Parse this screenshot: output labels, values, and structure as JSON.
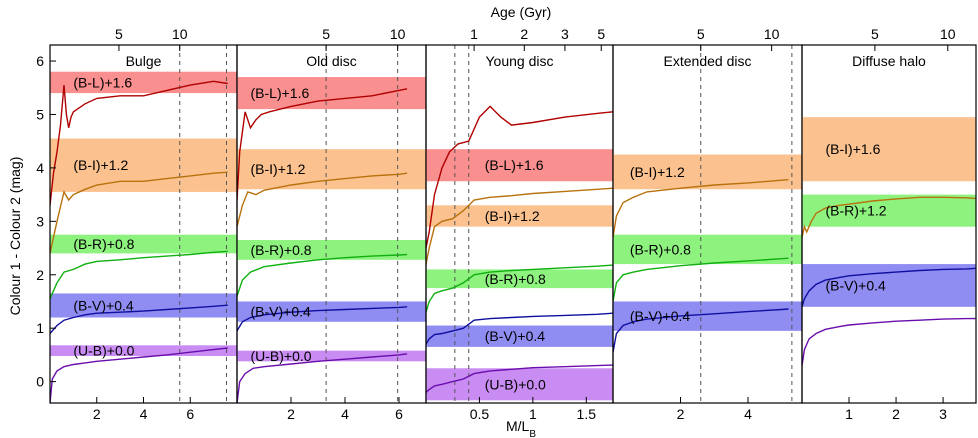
{
  "chart_data": {
    "type": "line",
    "ylabel": "Colour 1 - Colour 2  (mag)",
    "xlabel_bottom": "M/L",
    "xlabel_bottom_sub": "B",
    "xlabel_top": "Age (Gyr)",
    "ylim": [
      -0.4,
      6.3
    ],
    "yticks": [
      0,
      1,
      2,
      3,
      4,
      5,
      6
    ],
    "colors": {
      "U-B": "#6a0dad",
      "B-V": "#1010a0",
      "B-R": "#10b010",
      "B-I": "#b8720d",
      "B-L": "#b00000"
    },
    "band_colors": {
      "U-B": "#c98cf2",
      "B-V": "#8f8cf2",
      "B-R": "#8ef27f",
      "B-I": "#fbc28f",
      "B-L": "#fa8f8f"
    },
    "panels": [
      {
        "title": "Bulge",
        "xlim": [
          0,
          8
        ],
        "xticks": [
          2,
          4,
          6
        ],
        "top_ticks": [
          {
            "label": "5",
            "x": 2.95
          },
          {
            "label": "10",
            "x": 5.55
          }
        ],
        "age_lines": [
          5.55,
          7.55
        ],
        "bands": [
          {
            "key": "B-L",
            "label": "(B-L)+1.6",
            "y0": 5.4,
            "y1": 5.8,
            "label_x": 1.0
          },
          {
            "key": "B-I",
            "label": "(B-I)+1.2",
            "y0": 3.55,
            "y1": 4.55,
            "label_x": 1.0
          },
          {
            "key": "B-R",
            "label": "(B-R)+0.8",
            "y0": 2.4,
            "y1": 2.75,
            "label_x": 1.0
          },
          {
            "key": "B-V",
            "label": "(B-V)+0.4",
            "y0": 1.2,
            "y1": 1.65,
            "label_x": 1.0
          },
          {
            "key": "U-B",
            "label": "(U-B)+0.0",
            "y0": 0.48,
            "y1": 0.68,
            "label_x": 1.0
          }
        ],
        "curves": [
          {
            "key": "B-L",
            "x": [
              0.0,
              0.15,
              0.3,
              0.45,
              0.6,
              0.7,
              0.8,
              0.9,
              1.0,
              1.5,
              2.0,
              3.0,
              4.0,
              5.0,
              6.0,
              7.0,
              7.6
            ],
            "y": [
              3.3,
              3.9,
              4.3,
              4.8,
              5.55,
              5.0,
              4.75,
              4.95,
              5.05,
              5.2,
              5.3,
              5.35,
              5.35,
              5.45,
              5.55,
              5.62,
              5.58
            ]
          },
          {
            "key": "B-I",
            "x": [
              0.0,
              0.3,
              0.6,
              0.8,
              1.0,
              1.5,
              2.0,
              3.0,
              4.0,
              5.0,
              6.0,
              7.0,
              7.6
            ],
            "y": [
              2.4,
              3.0,
              3.55,
              3.4,
              3.5,
              3.6,
              3.68,
              3.75,
              3.75,
              3.8,
              3.85,
              3.9,
              3.92
            ]
          },
          {
            "key": "B-R",
            "x": [
              0.0,
              0.3,
              0.6,
              1.0,
              1.5,
              2.0,
              3.0,
              4.0,
              5.0,
              6.0,
              7.0,
              7.6
            ],
            "y": [
              1.55,
              1.85,
              2.05,
              2.1,
              2.2,
              2.25,
              2.28,
              2.32,
              2.35,
              2.38,
              2.42,
              2.44
            ]
          },
          {
            "key": "B-V",
            "x": [
              0.0,
              0.3,
              0.6,
              1.0,
              1.5,
              2.0,
              3.0,
              4.0,
              5.0,
              6.0,
              7.0,
              7.6
            ],
            "y": [
              0.9,
              1.05,
              1.15,
              1.2,
              1.25,
              1.28,
              1.3,
              1.32,
              1.35,
              1.38,
              1.41,
              1.43
            ]
          },
          {
            "key": "U-B",
            "x": [
              0.0,
              0.1,
              0.3,
              0.6,
              1.0,
              1.5,
              2.0,
              3.0,
              4.0,
              5.0,
              6.0,
              7.0,
              7.6
            ],
            "y": [
              -0.4,
              0.05,
              0.2,
              0.28,
              0.32,
              0.35,
              0.38,
              0.42,
              0.46,
              0.5,
              0.55,
              0.6,
              0.63
            ]
          }
        ]
      },
      {
        "title": "Old disc",
        "xlim": [
          0,
          7
        ],
        "xticks": [
          2,
          4,
          6
        ],
        "top_ticks": [
          {
            "label": "5",
            "x": 3.3
          },
          {
            "label": "10",
            "x": 5.95
          }
        ],
        "age_lines": [
          3.3,
          5.95
        ],
        "bands": [
          {
            "key": "B-L",
            "label": "(B-L)+1.6",
            "y0": 5.1,
            "y1": 5.7,
            "label_x": 0.5
          },
          {
            "key": "B-I",
            "label": "(B-I)+1.2",
            "y0": 3.6,
            "y1": 4.35,
            "label_x": 0.5
          },
          {
            "key": "B-R",
            "label": "(B-R)+0.8",
            "y0": 2.28,
            "y1": 2.65,
            "label_x": 0.5
          },
          {
            "key": "B-V",
            "label": "(B-V)+0.4",
            "y0": 1.12,
            "y1": 1.5,
            "label_x": 0.5
          },
          {
            "key": "U-B",
            "label": "(U-B)+0.0",
            "y0": 0.38,
            "y1": 0.58,
            "label_x": 0.5
          }
        ],
        "curves": [
          {
            "key": "B-L",
            "x": [
              0.0,
              0.1,
              0.3,
              0.5,
              0.7,
              0.9,
              1.2,
              2.0,
              3.0,
              4.0,
              5.0,
              6.0,
              6.3
            ],
            "y": [
              3.4,
              4.3,
              5.05,
              4.75,
              4.9,
              5.0,
              5.05,
              5.15,
              5.25,
              5.3,
              5.35,
              5.45,
              5.48
            ]
          },
          {
            "key": "B-I",
            "x": [
              0.0,
              0.2,
              0.4,
              0.7,
              1.0,
              2.0,
              3.0,
              4.0,
              5.0,
              6.0,
              6.3
            ],
            "y": [
              2.9,
              3.3,
              3.55,
              3.5,
              3.58,
              3.68,
              3.75,
              3.8,
              3.85,
              3.88,
              3.9
            ]
          },
          {
            "key": "B-R",
            "x": [
              0.0,
              0.2,
              0.5,
              1.0,
              2.0,
              3.0,
              4.0,
              5.0,
              6.0,
              6.3
            ],
            "y": [
              1.6,
              1.9,
              2.05,
              2.15,
              2.22,
              2.28,
              2.32,
              2.35,
              2.37,
              2.38
            ]
          },
          {
            "key": "B-V",
            "x": [
              0.0,
              0.2,
              0.5,
              1.0,
              2.0,
              3.0,
              4.0,
              5.0,
              6.0,
              6.3
            ],
            "y": [
              0.95,
              1.12,
              1.2,
              1.25,
              1.3,
              1.33,
              1.35,
              1.37,
              1.39,
              1.4
            ]
          },
          {
            "key": "U-B",
            "x": [
              0.0,
              0.1,
              0.3,
              0.6,
              1.0,
              2.0,
              3.0,
              4.0,
              5.0,
              6.0,
              6.3
            ],
            "y": [
              -0.4,
              0.0,
              0.15,
              0.25,
              0.28,
              0.33,
              0.38,
              0.42,
              0.46,
              0.5,
              0.52
            ]
          }
        ]
      },
      {
        "title": "Young disc",
        "xlim": [
          0,
          1.75
        ],
        "xticks": [
          0.5,
          1,
          1.5
        ],
        "top_ticks": [
          {
            "label": "1",
            "x": 0.45
          },
          {
            "label": "2",
            "x": 0.92
          },
          {
            "label": "3",
            "x": 1.3
          },
          {
            "label": "5",
            "x": 1.64
          }
        ],
        "age_lines": [
          0.27,
          0.4
        ],
        "bands": [
          {
            "key": "B-L",
            "label": "(B-L)+1.6",
            "y0": 3.75,
            "y1": 4.35,
            "label_x": 0.55
          },
          {
            "key": "B-I",
            "label": "(B-I)+1.2",
            "y0": 2.9,
            "y1": 3.3,
            "label_x": 0.55
          },
          {
            "key": "B-R",
            "label": "(B-R)+0.8",
            "y0": 1.75,
            "y1": 2.1,
            "label_x": 0.55
          },
          {
            "key": "B-V",
            "label": "(B-V)+0.4",
            "y0": 0.65,
            "y1": 1.05,
            "label_x": 0.55
          },
          {
            "key": "U-B",
            "label": "(U-B)+0.0",
            "y0": -0.35,
            "y1": 0.25,
            "label_x": 0.55
          }
        ],
        "curves": [
          {
            "key": "B-L",
            "x": [
              0.0,
              0.03,
              0.08,
              0.15,
              0.22,
              0.3,
              0.4,
              0.5,
              0.6,
              0.7,
              0.8,
              1.0,
              1.3,
              1.6,
              1.75
            ],
            "y": [
              2.5,
              2.8,
              3.5,
              4.0,
              4.3,
              4.45,
              4.5,
              4.95,
              5.15,
              4.95,
              4.8,
              4.85,
              4.95,
              5.02,
              5.05
            ]
          },
          {
            "key": "B-I",
            "x": [
              0.0,
              0.03,
              0.08,
              0.15,
              0.25,
              0.35,
              0.45,
              0.6,
              0.8,
              1.0,
              1.3,
              1.6,
              1.75
            ],
            "y": [
              2.2,
              2.5,
              2.9,
              3.0,
              3.05,
              3.2,
              3.4,
              3.45,
              3.48,
              3.52,
              3.56,
              3.6,
              3.62
            ]
          },
          {
            "key": "B-R",
            "x": [
              0.0,
              0.03,
              0.08,
              0.15,
              0.25,
              0.35,
              0.45,
              0.6,
              0.8,
              1.0,
              1.3,
              1.6,
              1.75
            ],
            "y": [
              1.3,
              1.5,
              1.65,
              1.7,
              1.75,
              1.85,
              2.0,
              2.05,
              2.08,
              2.1,
              2.13,
              2.16,
              2.18
            ]
          },
          {
            "key": "B-V",
            "x": [
              0.0,
              0.03,
              0.08,
              0.15,
              0.25,
              0.35,
              0.45,
              0.6,
              0.8,
              1.0,
              1.3,
              1.6,
              1.75
            ],
            "y": [
              0.7,
              0.8,
              0.88,
              0.9,
              0.95,
              1.0,
              1.15,
              1.18,
              1.2,
              1.22,
              1.24,
              1.26,
              1.28
            ]
          },
          {
            "key": "U-B",
            "x": [
              0.0,
              0.03,
              0.08,
              0.15,
              0.25,
              0.35,
              0.45,
              0.6,
              0.8,
              1.0,
              1.3,
              1.6,
              1.75
            ],
            "y": [
              -0.2,
              -0.15,
              -0.08,
              -0.05,
              0.0,
              0.05,
              0.15,
              0.2,
              0.23,
              0.26,
              0.28,
              0.3,
              0.31
            ]
          }
        ]
      },
      {
        "title": "Extended disc",
        "xlim": [
          0,
          5.6
        ],
        "xticks": [
          2,
          4
        ],
        "top_ticks": [
          {
            "label": "5",
            "x": 2.6
          },
          {
            "label": "10",
            "x": 4.7
          }
        ],
        "age_lines": [
          2.6,
          5.3
        ],
        "bands": [
          {
            "key": "B-I",
            "label": "(B-I)+1.2",
            "y0": 3.6,
            "y1": 4.25,
            "label_x": 0.5
          },
          {
            "key": "B-R",
            "label": "(B-R)+0.8",
            "y0": 2.2,
            "y1": 2.75,
            "label_x": 0.5
          },
          {
            "key": "B-V",
            "label": "(B-V)+0.4",
            "y0": 0.95,
            "y1": 1.5,
            "label_x": 0.5
          }
        ],
        "curves": [
          {
            "key": "B-I",
            "x": [
              0.0,
              0.1,
              0.3,
              0.6,
              1.0,
              2.0,
              3.0,
              4.0,
              5.0,
              5.2
            ],
            "y": [
              2.7,
              3.1,
              3.35,
              3.45,
              3.55,
              3.62,
              3.68,
              3.72,
              3.77,
              3.78
            ]
          },
          {
            "key": "B-R",
            "x": [
              0.0,
              0.1,
              0.3,
              0.6,
              1.0,
              2.0,
              3.0,
              4.0,
              5.0,
              5.2
            ],
            "y": [
              1.5,
              1.85,
              2.0,
              2.05,
              2.1,
              2.17,
              2.22,
              2.26,
              2.3,
              2.31
            ]
          },
          {
            "key": "B-V",
            "x": [
              0.0,
              0.1,
              0.3,
              0.6,
              1.0,
              2.0,
              3.0,
              4.0,
              5.0,
              5.2
            ],
            "y": [
              0.55,
              0.9,
              1.05,
              1.12,
              1.17,
              1.23,
              1.27,
              1.31,
              1.35,
              1.36
            ]
          }
        ]
      },
      {
        "title": "Diffuse halo",
        "xlim": [
          0,
          3.7
        ],
        "xticks": [
          1,
          2,
          3
        ],
        "top_ticks": [
          {
            "label": "5",
            "x": 1.55
          },
          {
            "label": "10",
            "x": 3.1
          }
        ],
        "age_lines": [],
        "bands": [
          {
            "key": "B-I",
            "label": "(B-I)+1.6",
            "y0": 3.75,
            "y1": 4.95,
            "label_x": 0.5
          },
          {
            "key": "B-R",
            "label": "(B-R)+1.2",
            "y0": 2.9,
            "y1": 3.5,
            "label_x": 0.5
          },
          {
            "key": "B-V",
            "label": "(B-V)+0.4",
            "y0": 1.4,
            "y1": 2.2,
            "label_x": 0.5
          }
        ],
        "curves": [
          {
            "key": "B-I",
            "x": [
              0.0,
              0.05,
              0.1,
              0.2,
              0.3,
              0.5,
              0.8,
              1.0,
              1.5,
              2.0,
              2.5,
              3.0,
              3.5,
              3.7
            ],
            "y": [
              2.7,
              2.9,
              2.8,
              3.0,
              3.15,
              3.25,
              3.3,
              3.32,
              3.38,
              3.42,
              3.45,
              3.45,
              3.44,
              3.43
            ]
          },
          {
            "key": "B-V",
            "x": [
              0.0,
              0.05,
              0.15,
              0.3,
              0.5,
              0.8,
              1.0,
              1.5,
              2.0,
              2.5,
              3.0,
              3.5,
              3.7
            ],
            "y": [
              1.4,
              1.55,
              1.7,
              1.82,
              1.9,
              1.95,
              1.98,
              2.02,
              2.05,
              2.08,
              2.1,
              2.11,
              2.12
            ]
          },
          {
            "key": "U-B",
            "x": [
              0.0,
              0.05,
              0.15,
              0.3,
              0.5,
              0.8,
              1.0,
              1.5,
              2.0,
              2.5,
              3.0,
              3.5,
              3.7
            ],
            "y": [
              0.3,
              0.6,
              0.8,
              0.9,
              0.98,
              1.03,
              1.06,
              1.1,
              1.13,
              1.15,
              1.17,
              1.18,
              1.18
            ]
          }
        ]
      }
    ]
  }
}
